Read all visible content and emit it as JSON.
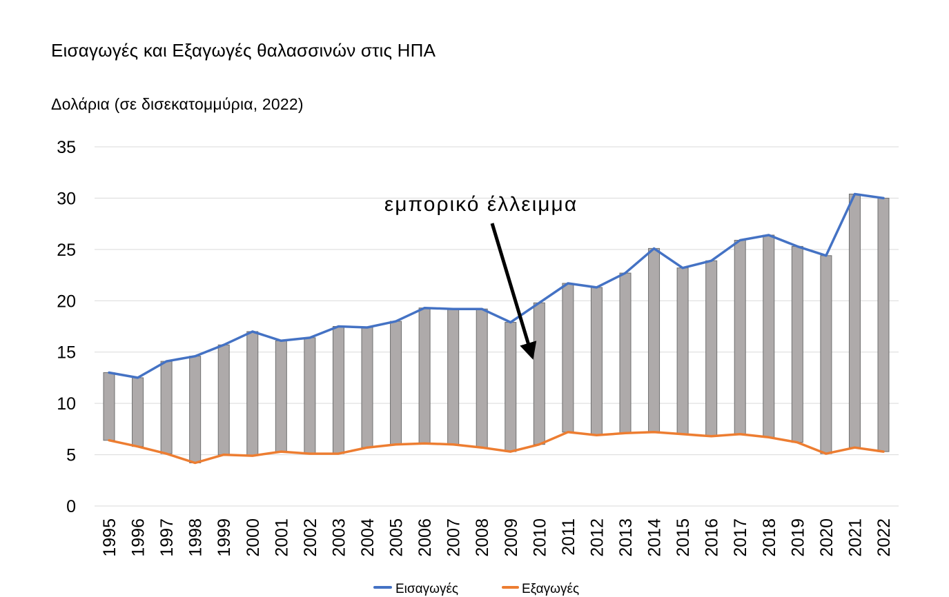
{
  "chart_data": {
    "type": "bar",
    "title": "Εισαγωγές και Εξαγωγές θαλασσινών στις ΗΠΑ",
    "subtitle": "Δολάρια (σε δισεκατομμύρια, 2022)",
    "categories": [
      "1995",
      "1996",
      "1997",
      "1998",
      "1999",
      "2000",
      "2001",
      "2002",
      "2003",
      "2004",
      "2005",
      "2006",
      "2007",
      "2008",
      "2009",
      "2010",
      "2011",
      "2012",
      "2013",
      "2014",
      "2015",
      "2016",
      "2017",
      "2018",
      "2019",
      "2020",
      "2021",
      "2022"
    ],
    "series": [
      {
        "name": "Εισαγωγές",
        "color": "#4472C4",
        "values": [
          13.0,
          12.5,
          14.1,
          14.6,
          15.7,
          17.0,
          16.1,
          16.4,
          17.5,
          17.4,
          18.0,
          19.3,
          19.2,
          19.2,
          17.9,
          19.8,
          21.7,
          21.3,
          22.7,
          25.1,
          23.2,
          23.9,
          25.9,
          26.4,
          25.3,
          24.4,
          30.4,
          30.0
        ]
      },
      {
        "name": "Εξαγωγές",
        "color": "#ED7D31",
        "values": [
          6.4,
          5.8,
          5.1,
          4.2,
          5.0,
          4.9,
          5.3,
          5.1,
          5.1,
          5.7,
          6.0,
          6.1,
          6.0,
          5.7,
          5.3,
          6.0,
          7.2,
          6.9,
          7.1,
          7.2,
          7.0,
          6.8,
          7.0,
          6.7,
          6.2,
          5.1,
          5.7,
          5.3
        ]
      }
    ],
    "gap_bars": {
      "color": "#AEAAAA",
      "meaning": "Εισαγωγές − Εξαγωγές"
    },
    "ylim": [
      0,
      35
    ],
    "yticks": [
      0,
      5,
      10,
      15,
      20,
      25,
      30,
      35
    ],
    "grid": true,
    "legend_position": "bottom",
    "annotation": {
      "text": "εμπορικό έλλειμμα",
      "points_to": "2010"
    }
  }
}
